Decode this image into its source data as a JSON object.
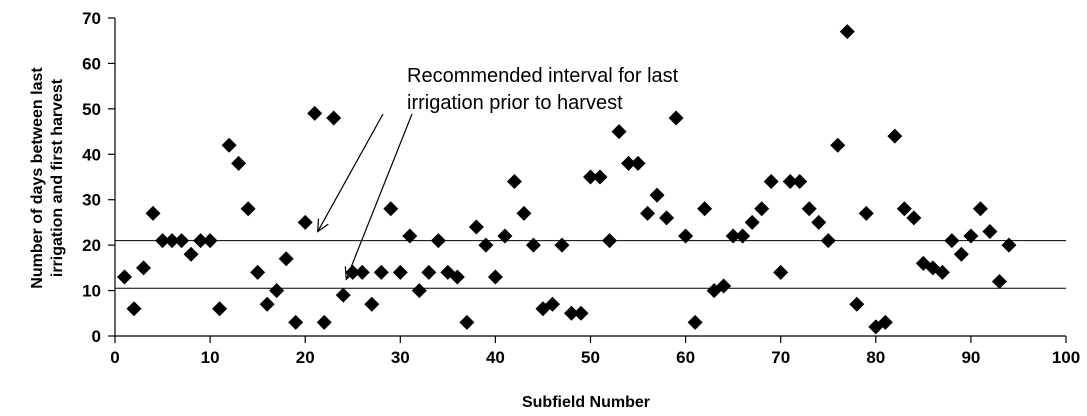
{
  "chart_data": {
    "type": "scatter",
    "title": "",
    "xlabel": "Subfield Number",
    "ylabel_lines": [
      "Number of days between last",
      "irrigation and first harvest"
    ],
    "xlim": [
      0,
      100
    ],
    "ylim": [
      0,
      70
    ],
    "xticks": [
      "0",
      "10",
      "20",
      "30",
      "40",
      "50",
      "60",
      "70",
      "80",
      "90",
      "100"
    ],
    "yticks": [
      "0",
      "10",
      "20",
      "30",
      "40",
      "50",
      "60",
      "70"
    ],
    "grid": false,
    "legend": "none",
    "marker": "diamond",
    "marker_color": "#000000",
    "reference_lines": [
      10.5,
      21
    ],
    "annotation": {
      "lines": [
        "Recommended interval for last",
        "irrigation prior to harvest"
      ],
      "arrow_targets": [
        [
          21,
          21
        ],
        [
          24,
          10.5
        ]
      ]
    },
    "x": [
      1,
      2,
      3,
      4,
      5,
      6,
      7,
      8,
      9,
      10,
      11,
      12,
      13,
      14,
      15,
      16,
      17,
      18,
      19,
      20,
      21,
      22,
      23,
      24,
      25,
      26,
      27,
      28,
      29,
      30,
      31,
      32,
      33,
      34,
      35,
      36,
      37,
      38,
      39,
      40,
      41,
      42,
      43,
      44,
      45,
      46,
      47,
      48,
      49,
      50,
      51,
      52,
      53,
      54,
      55,
      56,
      57,
      58,
      59,
      60,
      61,
      62,
      63,
      64,
      65,
      66,
      67,
      68,
      69,
      70,
      71,
      72,
      73,
      74,
      75,
      76,
      77,
      78,
      79,
      80,
      81,
      82,
      83,
      84,
      85,
      86,
      87,
      88,
      89,
      90,
      91,
      92,
      93,
      94
    ],
    "y": [
      13,
      6,
      15,
      27,
      21,
      21,
      21,
      18,
      21,
      21,
      6,
      42,
      38,
      28,
      14,
      7,
      10,
      17,
      3,
      25,
      49,
      3,
      48,
      9,
      14,
      14,
      7,
      14,
      28,
      14,
      22,
      10,
      14,
      21,
      14,
      13,
      3,
      24,
      20,
      13,
      22,
      34,
      27,
      20,
      6,
      7,
      20,
      5,
      5,
      35,
      35,
      21,
      45,
      38,
      38,
      27,
      31,
      26,
      48,
      22,
      3,
      28,
      10,
      11,
      22,
      22,
      25,
      28,
      34,
      14,
      34,
      34,
      28,
      25,
      21,
      42,
      67,
      7,
      27,
      2,
      3,
      44,
      28,
      26,
      16,
      15,
      14,
      21,
      18,
      22,
      28,
      23,
      12,
      20
    ]
  }
}
